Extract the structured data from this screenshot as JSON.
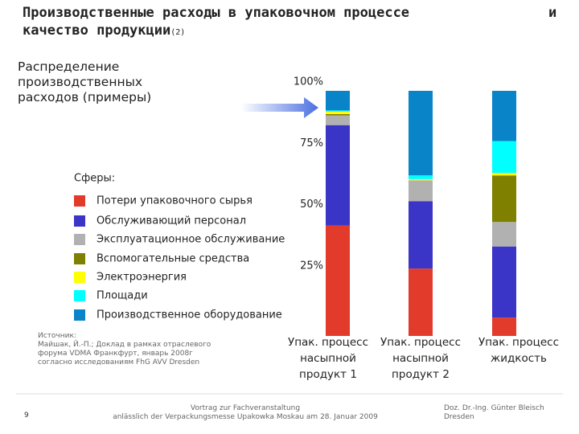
{
  "chart_data": {
    "type": "stacked_bar",
    "title_lines": [
      "Производственные расходы в упаковочном процессе",
      "и",
      "качество продукции"
    ],
    "title_mark": "(2)",
    "side_label": "Распределение производственных расходов (примеры)",
    "legend_title": "Сферы:",
    "categories": [
      "Упак. процесс\nнасыпной\nпродукт 1",
      "Упак. процесс\nнасыпной\nпродукт 2",
      "Упак. процесс\nжидкость"
    ],
    "series": [
      {
        "name": "Потери упаковочного сырья",
        "color": "#e23b2b",
        "values": [
          45,
          27.5,
          7.5
        ]
      },
      {
        "name": "Обслуживающий персонал",
        "color": "#3b35c7",
        "values": [
          41,
          27.5,
          29
        ]
      },
      {
        "name": "Эксплуатационное обслуживание",
        "color": "#b1b1b1",
        "values": [
          4,
          8.5,
          10
        ]
      },
      {
        "name": "Вспомогательные средства",
        "color": "#808000",
        "values": [
          0.5,
          0,
          19
        ]
      },
      {
        "name": "Электроэнергия",
        "color": "#ffff00",
        "values": [
          1,
          0.5,
          1
        ]
      },
      {
        "name": "Площади",
        "color": "#00ffff",
        "values": [
          0.5,
          1.5,
          13
        ]
      },
      {
        "name": "Производственное оборудование",
        "color": "#0a84c8",
        "values": [
          8,
          34.5,
          20.5
        ]
      }
    ],
    "ylim": [
      0,
      100
    ],
    "yticks": [
      {
        "value": 25,
        "label": "25%"
      },
      {
        "value": 50,
        "label": "50%"
      },
      {
        "value": 75,
        "label": "75%"
      },
      {
        "value": 100,
        "label": "100%"
      }
    ],
    "source": "Источник:\nМайшак, Й.-П.; Доклад в рамках отраслевого\nфорума VDMA Франкфурт, январь 2008г\nсогласно исследованиям FhG AVV Dresden",
    "page_number": "9",
    "footer": "Vortrag zur Fachveranstaltung\nanlässlich der Verpackungsmesse Upakowka Moskau am 28. Januar 2009",
    "author": "Doz. Dr.-Ing. Günter Bleisch\nDresden"
  }
}
